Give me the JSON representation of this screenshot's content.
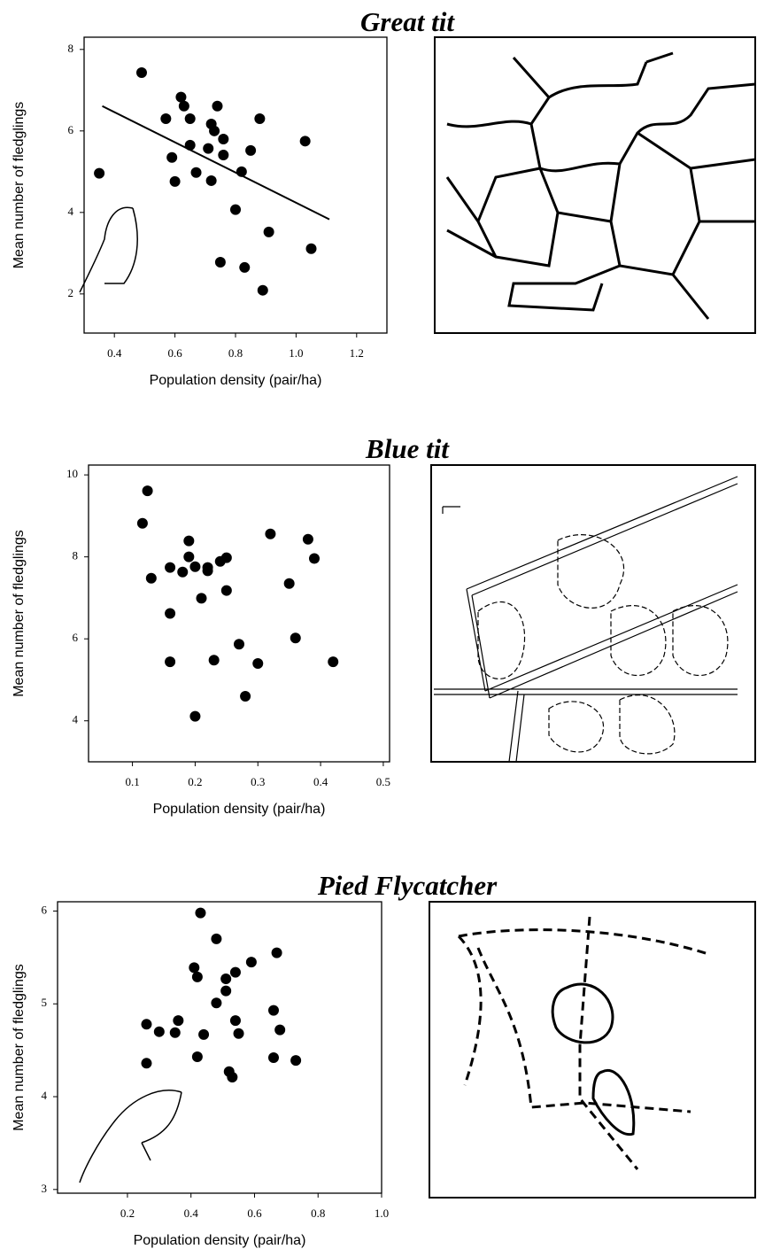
{
  "chart_data": [
    {
      "type": "scatter",
      "title": "Great tit",
      "x_label": "Population density (pair/ha)",
      "y_label": "Mean number of fledglings",
      "xlim": [
        0.3,
        1.3
      ],
      "ylim": [
        1.04,
        8.3
      ],
      "xticks": [
        0.4,
        0.6,
        0.8,
        {
          "value": 1.0,
          "label": "1.0"
        },
        1.2
      ],
      "yticks": [
        2,
        4,
        6,
        8
      ],
      "series": [
        {
          "color": "#000000",
          "x": [
            0.49,
            0.35,
            0.62,
            0.63,
            0.57,
            0.65,
            0.74,
            0.72,
            0.73,
            0.88,
            0.76,
            0.65,
            0.71,
            0.85,
            0.76,
            0.59,
            1.03,
            0.67,
            0.82,
            0.6,
            0.72,
            0.8,
            0.91,
            1.05,
            0.75,
            0.83,
            0.89
          ],
          "values": [
            7.43,
            4.96,
            6.83,
            6.61,
            6.3,
            6.3,
            6.61,
            6.17,
            6.0,
            6.3,
            5.8,
            5.65,
            5.57,
            5.52,
            5.41,
            5.35,
            5.75,
            4.98,
            5.0,
            4.76,
            4.78,
            4.07,
            3.52,
            3.11,
            2.78,
            2.65,
            2.09
          ]
        }
      ],
      "trendline": {
        "x": [
          0.36,
          1.11
        ],
        "values": [
          6.61,
          3.83
        ]
      }
    },
    {
      "type": "scatter",
      "title": "Blue tit",
      "x_label": "Population density (pair/ha)",
      "y_label": "Mean number of fledglings",
      "xlim": [
        0.03,
        0.51
      ],
      "ylim": [
        3,
        10.24
      ],
      "xticks": [
        0.1,
        0.2,
        0.3,
        0.4,
        0.5
      ],
      "yticks": [
        4,
        6,
        8,
        10
      ],
      "series": [
        {
          "color": "#000000",
          "x": [
            0.124,
            0.116,
            0.19,
            0.32,
            0.38,
            0.13,
            0.16,
            0.19,
            0.25,
            0.24,
            0.2,
            0.22,
            0.22,
            0.18,
            0.39,
            0.35,
            0.25,
            0.21,
            0.16,
            0.27,
            0.36,
            0.16,
            0.23,
            0.3,
            0.42,
            0.28,
            0.2
          ],
          "values": [
            9.61,
            8.82,
            8.39,
            8.56,
            8.43,
            7.48,
            7.74,
            8.0,
            7.98,
            7.89,
            7.76,
            7.74,
            7.66,
            7.63,
            7.96,
            7.35,
            7.18,
            6.99,
            6.62,
            5.87,
            6.02,
            5.44,
            5.48,
            5.4,
            5.44,
            4.6,
            4.11
          ]
        }
      ]
    },
    {
      "type": "scatter",
      "title": "Pied Flycatcher",
      "x_label": "Population density (pair/ha)",
      "y_label": "Mean number of fledglings",
      "xlim": [
        -0.02,
        1.0
      ],
      "ylim": [
        2.96,
        6.1
      ],
      "xticks": [
        0.2,
        0.4,
        0.6,
        0.8,
        {
          "value": 1.0,
          "label": "1.0"
        }
      ],
      "yticks": [
        3,
        4,
        5,
        6
      ],
      "series": [
        {
          "color": "#000000",
          "x": [
            0.43,
            0.48,
            0.41,
            0.59,
            0.67,
            0.42,
            0.51,
            0.54,
            0.51,
            0.48,
            0.66,
            0.26,
            0.3,
            0.36,
            0.35,
            0.44,
            0.54,
            0.55,
            0.68,
            0.26,
            0.42,
            0.52,
            0.53,
            0.66,
            0.73
          ],
          "values": [
            5.98,
            5.7,
            5.39,
            5.45,
            5.55,
            5.29,
            5.27,
            5.34,
            5.14,
            5.01,
            4.93,
            4.78,
            4.7,
            4.82,
            4.69,
            4.67,
            4.82,
            4.68,
            4.72,
            4.36,
            4.43,
            4.27,
            4.21,
            4.42,
            4.39
          ]
        }
      ]
    }
  ]
}
